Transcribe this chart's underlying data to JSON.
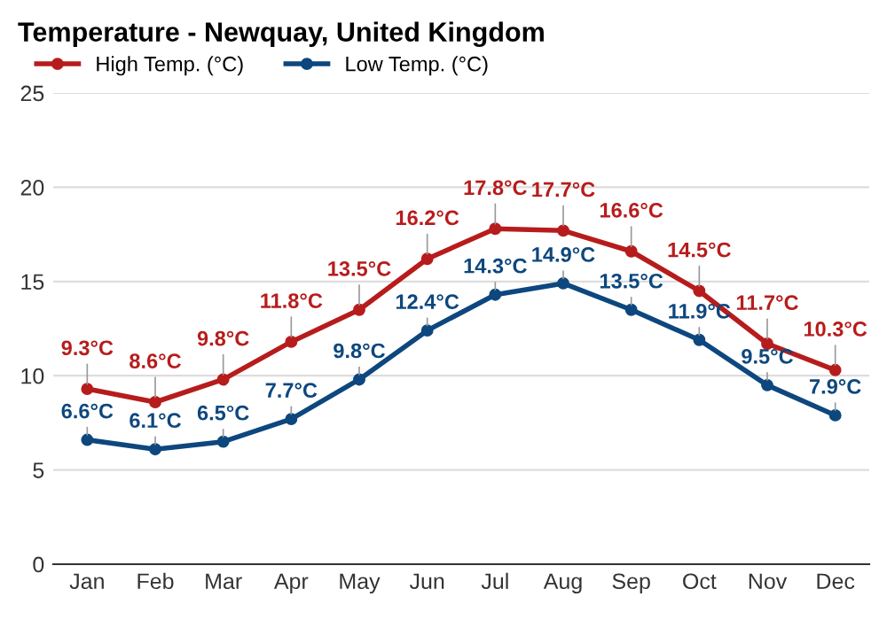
{
  "chart_data": {
    "type": "line",
    "title": "Temperature - Newquay, United Kingdom",
    "categories": [
      "Jan",
      "Feb",
      "Mar",
      "Apr",
      "May",
      "Jun",
      "Jul",
      "Aug",
      "Sep",
      "Oct",
      "Nov",
      "Dec"
    ],
    "series": [
      {
        "name": "High Temp. (°C)",
        "color": "#b71c1c",
        "values": [
          9.3,
          8.6,
          9.8,
          11.8,
          13.5,
          16.2,
          17.8,
          17.7,
          16.6,
          14.5,
          11.7,
          10.3
        ],
        "value_labels": [
          "9.3°C",
          "8.6°C",
          "9.8°C",
          "11.8°C",
          "13.5°C",
          "16.2°C",
          "17.8°C",
          "17.7°C",
          "16.6°C",
          "14.5°C",
          "11.7°C",
          "10.3°C"
        ]
      },
      {
        "name": "Low Temp. (°C)",
        "color": "#0d477e",
        "values": [
          6.6,
          6.1,
          6.5,
          7.7,
          9.8,
          12.4,
          14.3,
          14.9,
          13.5,
          11.9,
          9.5,
          7.9
        ],
        "value_labels": [
          "6.6°C",
          "6.1°C",
          "6.5°C",
          "7.7°C",
          "9.8°C",
          "12.4°C",
          "14.3°C",
          "14.9°C",
          "13.5°C",
          "11.9°C",
          "9.5°C",
          "7.9°C"
        ]
      }
    ],
    "ylim": [
      0,
      25
    ],
    "yticks": [
      0,
      5,
      10,
      15,
      20,
      25
    ],
    "grid": "y",
    "legend": "top left",
    "marker": "circle",
    "line_style": "solid"
  }
}
